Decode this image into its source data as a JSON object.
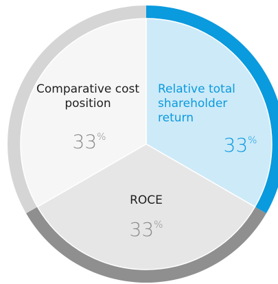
{
  "chart_data": {
    "type": "pie",
    "categories": [
      "Relative total shareholder return",
      "ROCE",
      "Comparative cost position"
    ],
    "values": [
      33,
      33,
      33
    ],
    "value_labels": [
      "33%",
      "33%",
      "33%"
    ],
    "colors": [
      "#cdeaf8",
      "#e6e6e6",
      "#f6f6f6"
    ],
    "ring_colors": [
      "#0a9ade",
      "#8f8f8f",
      "#d5d5d5"
    ],
    "text_colors": [
      "#0a9ade",
      "#1e1e1e",
      "#1e1e1e"
    ],
    "value_colors": [
      "#0a9ade",
      "#8a8a8a",
      "#8a8a8a"
    ]
  }
}
